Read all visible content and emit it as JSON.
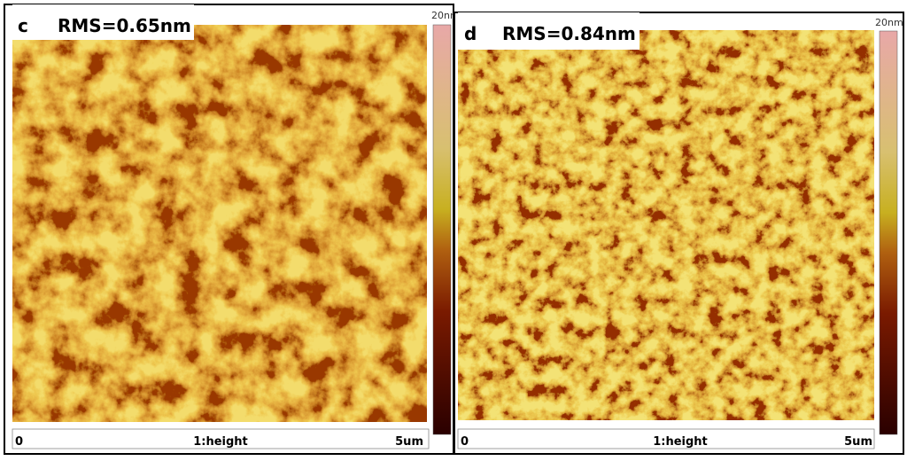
{
  "panels": [
    {
      "label": "c",
      "rms": "RMS=0.65nm",
      "colorbar_max": "20nm",
      "scale_start": "0",
      "channel": "1:height",
      "scale_end": "5um"
    },
    {
      "label": "d",
      "rms": "RMS=0.84nm",
      "colorbar_max": "20nm",
      "scale_start": "0",
      "channel": "1:height",
      "scale_end": "5um"
    }
  ]
}
